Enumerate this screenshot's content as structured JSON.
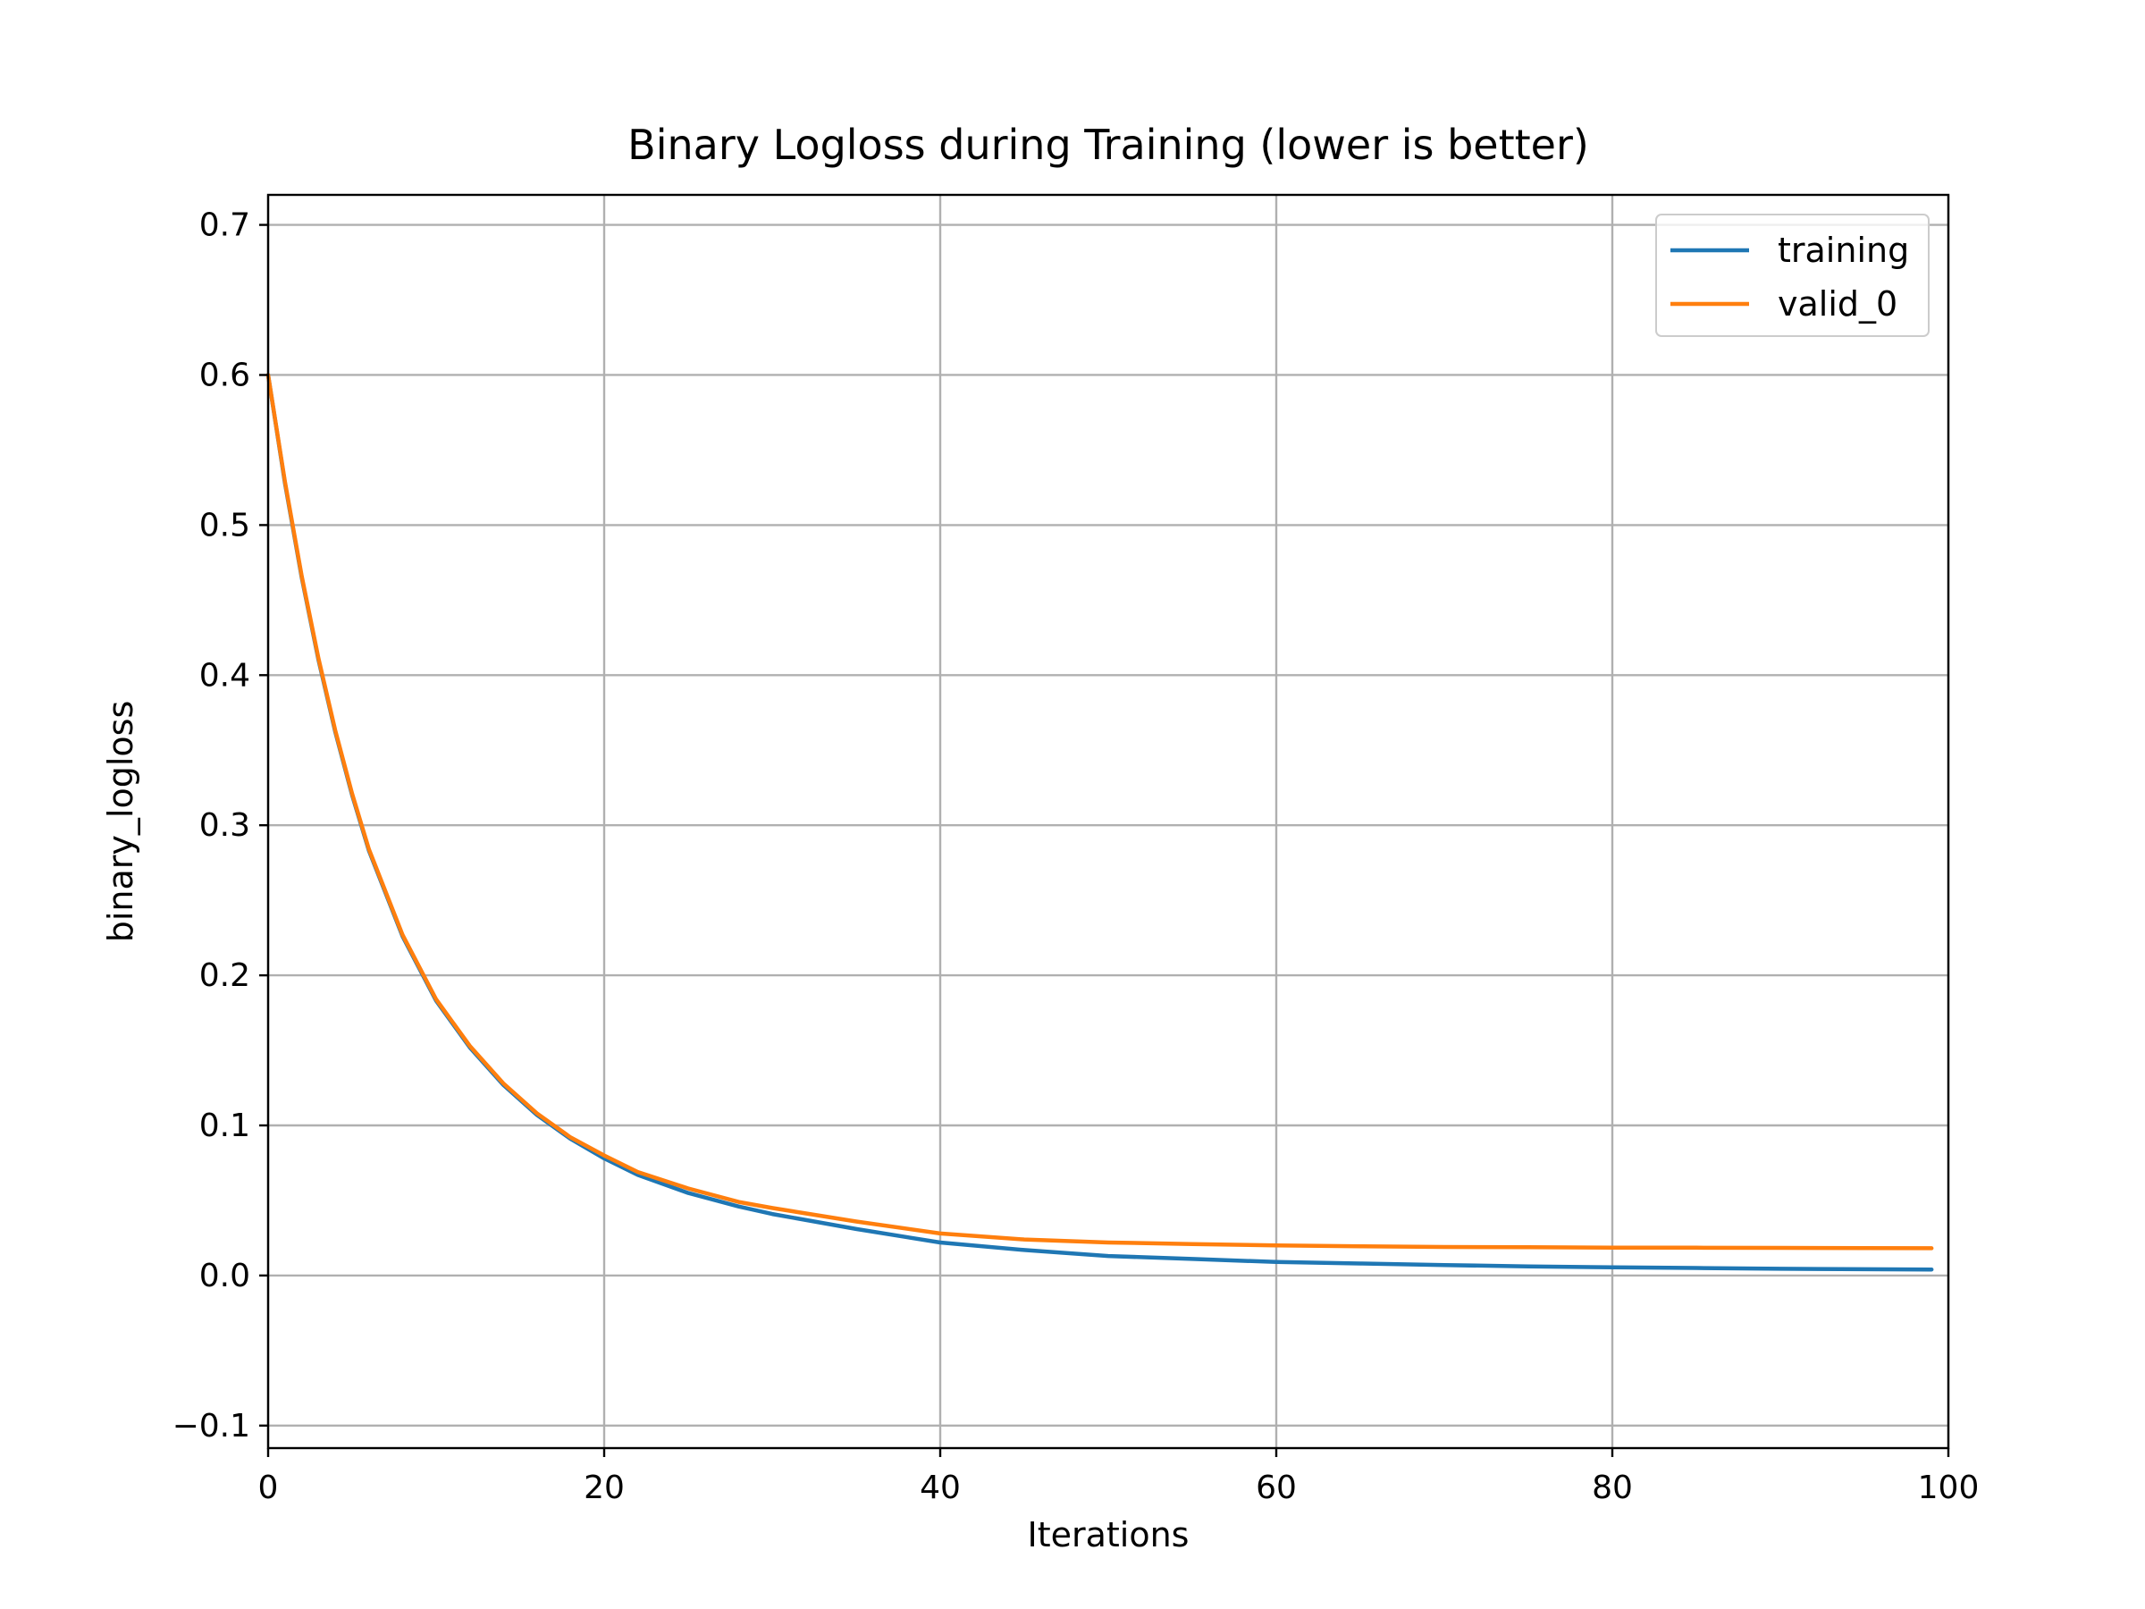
{
  "chart_data": {
    "type": "line",
    "title": "Binary Logloss during Training (lower is better)",
    "xlabel": "Iterations",
    "ylabel": "binary_logloss",
    "xlim": [
      0,
      100
    ],
    "ylim": [
      -0.115,
      0.72
    ],
    "x_ticks": [
      0,
      20,
      40,
      60,
      80,
      100
    ],
    "x_tick_labels": [
      "0",
      "20",
      "40",
      "60",
      "80",
      "100"
    ],
    "y_ticks": [
      -0.1,
      0.0,
      0.1,
      0.2,
      0.3,
      0.4,
      0.5,
      0.6,
      0.7
    ],
    "y_tick_labels": [
      "−0.1",
      "0.0",
      "0.1",
      "0.2",
      "0.3",
      "0.4",
      "0.5",
      "0.6",
      "0.7"
    ],
    "grid": true,
    "legend_position": "top-right",
    "x": [
      0,
      1,
      2,
      3,
      4,
      5,
      6,
      8,
      10,
      12,
      14,
      16,
      18,
      20,
      22,
      25,
      28,
      30,
      35,
      40,
      45,
      50,
      55,
      60,
      65,
      70,
      75,
      80,
      85,
      90,
      95,
      99
    ],
    "series": [
      {
        "name": "training",
        "color": "#1f77b4",
        "values": [
          0.6,
          0.528,
          0.465,
          0.41,
          0.362,
          0.32,
          0.283,
          0.226,
          0.183,
          0.152,
          0.127,
          0.107,
          0.091,
          0.078,
          0.067,
          0.055,
          0.046,
          0.041,
          0.031,
          0.022,
          0.017,
          0.013,
          0.011,
          0.009,
          0.008,
          0.007,
          0.006,
          0.0055,
          0.005,
          0.0045,
          0.0042,
          0.004
        ]
      },
      {
        "name": "valid_0",
        "color": "#ff7f0e",
        "values": [
          0.6,
          0.529,
          0.466,
          0.411,
          0.363,
          0.321,
          0.284,
          0.227,
          0.184,
          0.153,
          0.128,
          0.108,
          0.092,
          0.08,
          0.069,
          0.058,
          0.049,
          0.045,
          0.036,
          0.028,
          0.024,
          0.022,
          0.021,
          0.02,
          0.0195,
          0.019,
          0.0188,
          0.0186,
          0.0185,
          0.0184,
          0.0183,
          0.0182
        ]
      }
    ]
  }
}
